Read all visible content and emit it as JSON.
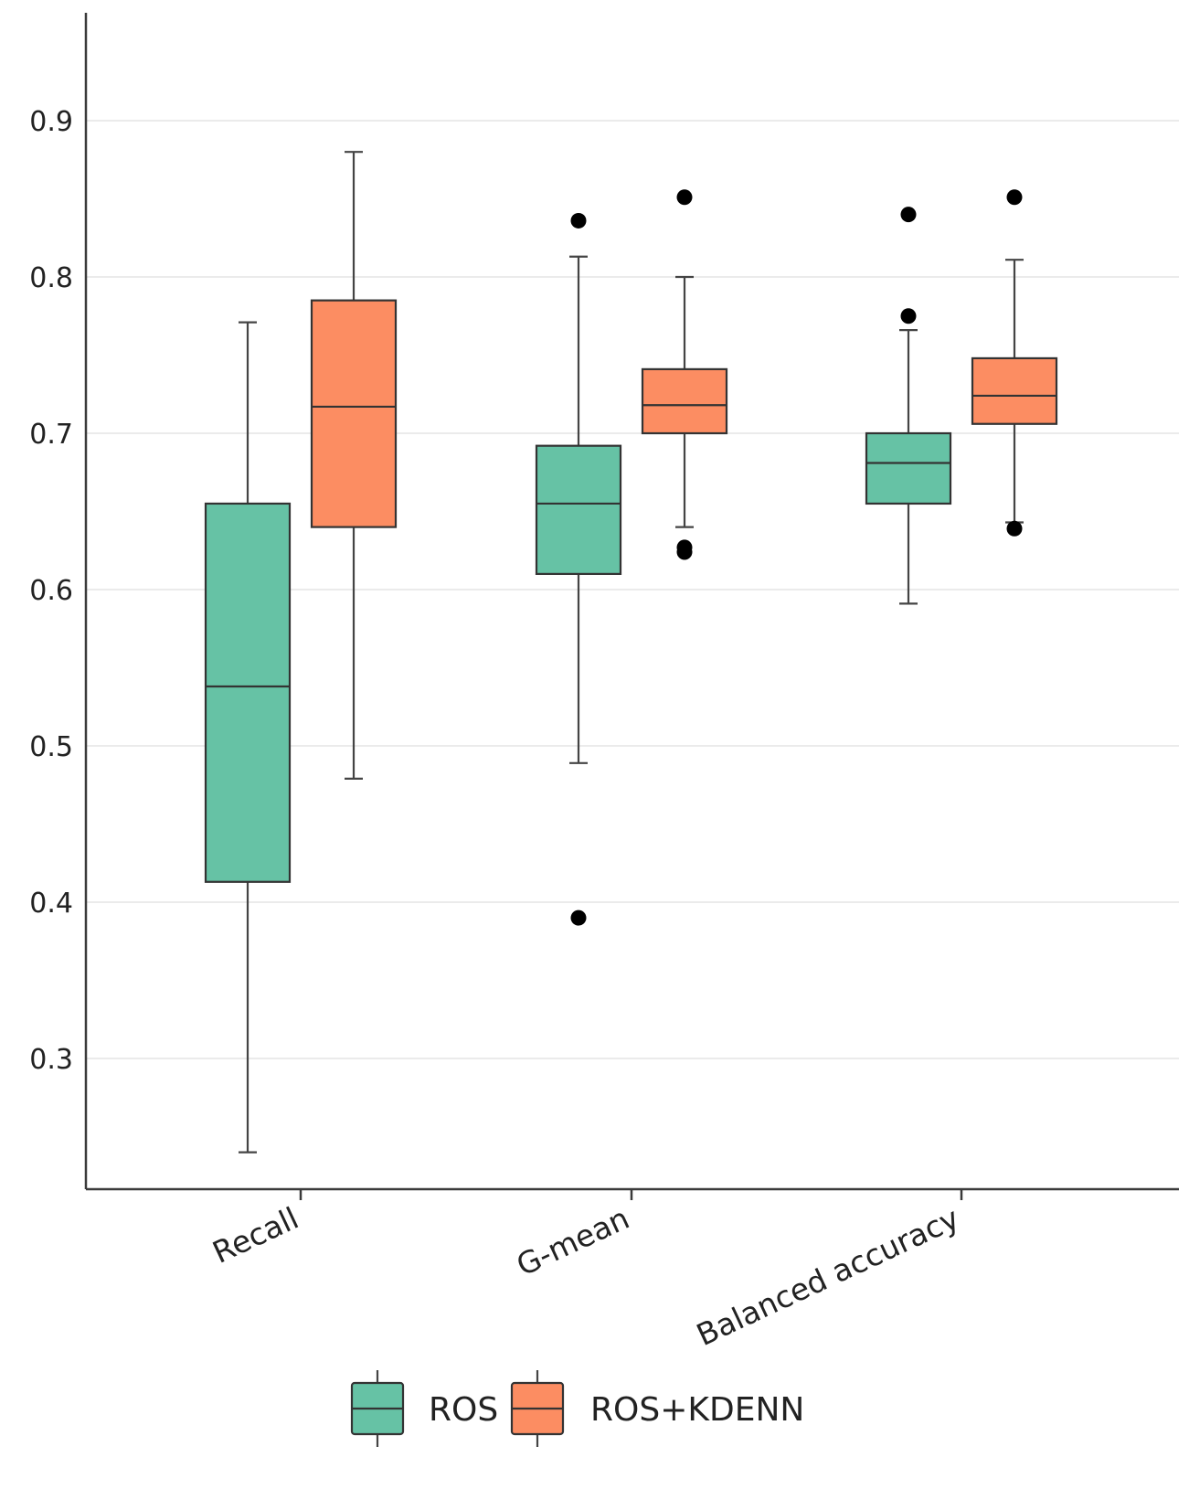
{
  "chart_data": {
    "type": "boxplot",
    "title": "",
    "xlabel": "",
    "ylabel": "",
    "ylim": [
      0.225,
      0.97
    ],
    "yticks": [
      "0.3",
      "0.4",
      "0.5",
      "0.6",
      "0.7",
      "0.8",
      "0.9"
    ],
    "grid": true,
    "categories": [
      "Recall",
      "G-mean",
      "Balanced accuracy"
    ],
    "legend_position": "bottom",
    "series": [
      {
        "name": "ROS",
        "color": "#66c2a5",
        "boxes": [
          {
            "whisker_low": 0.24,
            "q1": 0.413,
            "median": 0.538,
            "q3": 0.655,
            "whisker_high": 0.771,
            "outliers": []
          },
          {
            "whisker_low": 0.489,
            "q1": 0.61,
            "median": 0.655,
            "q3": 0.692,
            "whisker_high": 0.813,
            "outliers": [
              0.836,
              0.39
            ]
          },
          {
            "whisker_low": 0.591,
            "q1": 0.655,
            "median": 0.681,
            "q3": 0.7,
            "whisker_high": 0.766,
            "outliers": [
              0.84,
              0.775
            ]
          }
        ]
      },
      {
        "name": "ROS+KDENN",
        "color": "#fc8d62",
        "boxes": [
          {
            "whisker_low": 0.479,
            "q1": 0.64,
            "median": 0.717,
            "q3": 0.785,
            "whisker_high": 0.88,
            "outliers": []
          },
          {
            "whisker_low": 0.64,
            "q1": 0.7,
            "median": 0.718,
            "q3": 0.741,
            "whisker_high": 0.8,
            "outliers": [
              0.851,
              0.627,
              0.624
            ]
          },
          {
            "whisker_low": 0.643,
            "q1": 0.706,
            "median": 0.724,
            "q3": 0.748,
            "whisker_high": 0.811,
            "outliers": [
              0.851,
              0.639
            ]
          }
        ]
      }
    ]
  }
}
